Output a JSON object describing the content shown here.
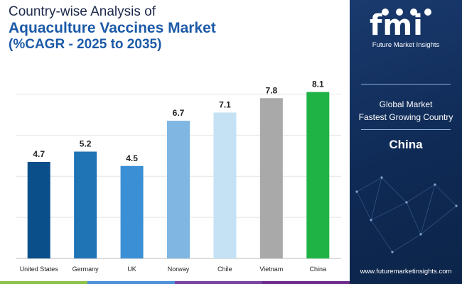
{
  "title": {
    "line1": "Country-wise Analysis of",
    "line2": "Aquaculture Vaccines Market",
    "line3": "(%CAGR - 2025 to 2035)"
  },
  "chart_data": {
    "type": "bar",
    "categories": [
      "United States",
      "Germany",
      "UK",
      "Norway",
      "Chile",
      "Vietnam",
      "China"
    ],
    "values": [
      4.7,
      5.2,
      4.5,
      6.7,
      7.1,
      7.8,
      8.1
    ],
    "value_labels": [
      "4.7",
      "5.2",
      "4.5",
      "6.7",
      "7.1",
      "7.8",
      "8.1"
    ],
    "colors": [
      "#0b4f8a",
      "#1f74b6",
      "#3a8fd5",
      "#7fb6e2",
      "#c4e2f4",
      "#a9a9a9",
      "#1fb346"
    ],
    "ylim": [
      0,
      8.5
    ],
    "grid": true,
    "xlabel": "",
    "ylabel": ""
  },
  "panel": {
    "logo_letters": "fmi",
    "logo_tagline": "Future Market Insights",
    "subtitle_line1": "Global Market",
    "subtitle_line2": "Fastest Growing Country",
    "country": "China",
    "url": "www.futuremarketinsights.com"
  },
  "stripe_colors": [
    "#8bc34a",
    "#4a8fd8",
    "#7b3fa0",
    "#6b2a8a"
  ]
}
